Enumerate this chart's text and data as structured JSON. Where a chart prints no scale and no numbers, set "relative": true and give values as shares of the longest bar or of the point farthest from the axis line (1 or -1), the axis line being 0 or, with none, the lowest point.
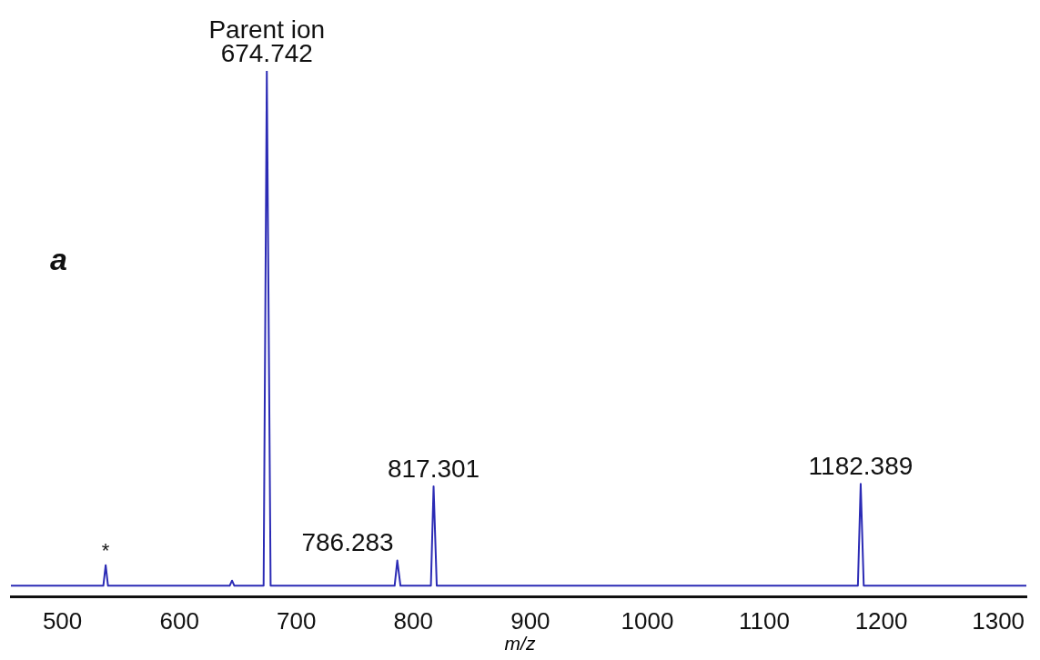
{
  "chart_data": {
    "type": "line",
    "relative": true,
    "xlabel": "m/z",
    "xlim": [
      456,
      1324
    ],
    "xticks": [
      500,
      600,
      700,
      800,
      900,
      1000,
      1100,
      1200,
      1300
    ],
    "grid": false,
    "legend": false,
    "marker": "none",
    "line_style": "solid",
    "series": [
      {
        "color": "#2b2bb5",
        "x": [
          456,
          535,
          537,
          539,
          643,
          645,
          647,
          672,
          674.742,
          678,
          784,
          786.283,
          789,
          815,
          817.301,
          820,
          1180,
          1182.389,
          1185,
          1324
        ],
        "values": [
          0,
          0,
          0.04,
          0,
          0,
          0.01,
          0,
          0,
          1,
          0,
          0,
          0.049,
          0,
          0,
          0.193,
          0,
          0,
          0.198,
          0,
          0
        ]
      }
    ],
    "annotations": [
      "a",
      {
        "text": "Parent ion",
        "x": 674.742,
        "y": 1
      },
      {
        "text": "674.742",
        "x": 674.742,
        "y": 1
      },
      {
        "text": "*",
        "x": 537,
        "y": 0.04
      },
      {
        "text": "786.283",
        "x": 786.283,
        "y": 0.049
      },
      {
        "text": "817.301",
        "x": 817.301,
        "y": 0.193
      },
      {
        "text": "1182.389",
        "x": 1182.389,
        "y": 0.198
      }
    ]
  }
}
